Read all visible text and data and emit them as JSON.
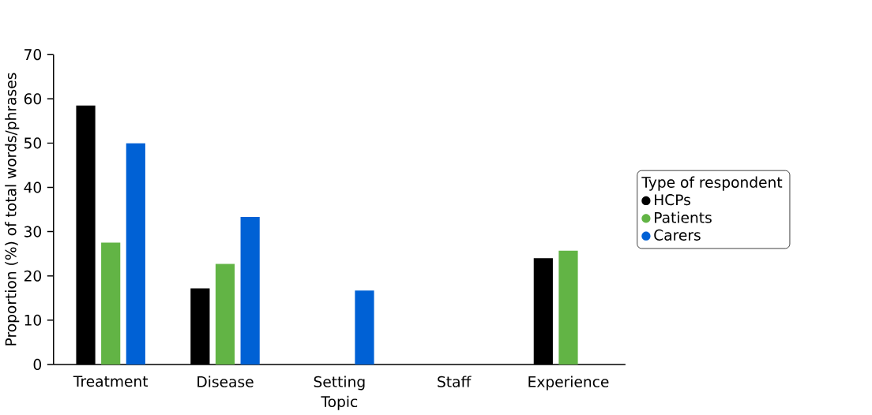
{
  "chart_data": {
    "type": "bar",
    "xlabel": "Topic",
    "ylabel": "Proportion (%) of total words/phrases",
    "legend_title": "Type of respondent",
    "legend": "right",
    "grid": false,
    "categories": [
      "Treatment",
      "Disease",
      "Setting",
      "Staff",
      "Experience"
    ],
    "ylim": [
      0,
      70
    ],
    "yticks": [
      0,
      10,
      20,
      30,
      40,
      50,
      60,
      70
    ],
    "series": [
      {
        "name": "HCPs",
        "color": "#000000",
        "values": [
          58.5,
          17.2,
          0,
          0,
          24.0
        ]
      },
      {
        "name": "Patients",
        "color": "#62b445",
        "values": [
          27.5,
          22.7,
          0,
          0,
          25.7
        ]
      },
      {
        "name": "Carers",
        "color": "#0061d5",
        "values": [
          50.0,
          33.3,
          16.7,
          0,
          0
        ]
      }
    ]
  }
}
